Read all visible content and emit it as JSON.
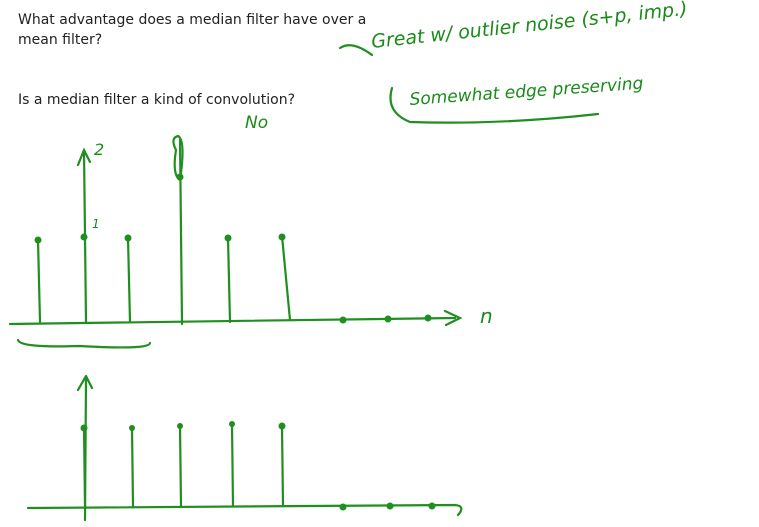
{
  "question_1": [
    "What advantage does a median filter have over a",
    "mean filter?"
  ],
  "question_2": "Is a median filter a kind of convolution?",
  "answer_1": "Great w/ outlier noise (s+p, imp.)",
  "answer_1b": "Somewhat edge preserving",
  "answer_2": "No",
  "plot_1": {
    "axis_label": "n",
    "labels": [
      "2",
      "1"
    ]
  }
}
